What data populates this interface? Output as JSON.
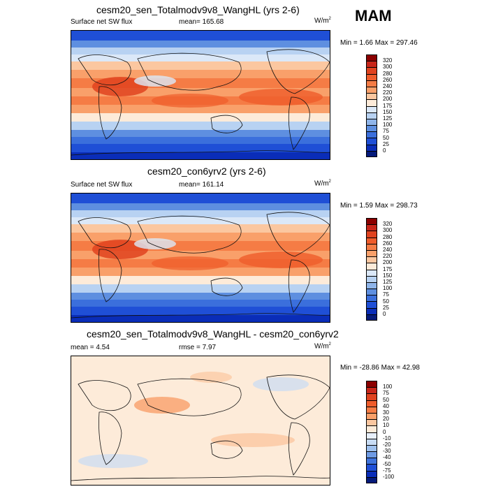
{
  "season": "MAM",
  "chart_data": [
    {
      "type": "heatmap",
      "title": "cesm20_sen_Totalmodv9v8_WangHL (yrs 2-6)",
      "variable": "Surface net SW flux",
      "stat_label": "mean=",
      "stat_value": "165.68",
      "units_base": "W/m",
      "units_exp": "2",
      "min_label": "Min =",
      "min_value": "1.66",
      "max_label": "Max =",
      "max_value": "297.46",
      "levels": [
        "320",
        "300",
        "280",
        "260",
        "240",
        "220",
        "200",
        "175",
        "150",
        "125",
        "100",
        "75",
        "50",
        "25",
        "0"
      ],
      "colors": [
        "#8b0000",
        "#c8261a",
        "#e0431f",
        "#ef5c2b",
        "#f57c45",
        "#f9a06a",
        "#fbc7a0",
        "#fdebd9",
        "#dbe8f8",
        "#b8d2f2",
        "#8fb5ea",
        "#5e8fe0",
        "#3b6fdc",
        "#1f4fd6",
        "#0a2db8",
        "#051a7a"
      ],
      "pattern": "sw"
    },
    {
      "type": "heatmap",
      "title": "cesm20_con6yrv2 (yrs 2-6)",
      "variable": "Surface net SW flux",
      "stat_label": "mean=",
      "stat_value": "161.14",
      "units_base": "W/m",
      "units_exp": "2",
      "min_label": "Min =",
      "min_value": "1.59",
      "max_label": "Max =",
      "max_value": "298.73",
      "levels": [
        "320",
        "300",
        "280",
        "260",
        "240",
        "220",
        "200",
        "175",
        "150",
        "125",
        "100",
        "75",
        "50",
        "25",
        "0"
      ],
      "colors": [
        "#8b0000",
        "#c8261a",
        "#e0431f",
        "#ef5c2b",
        "#f57c45",
        "#f9a06a",
        "#fbc7a0",
        "#fdebd9",
        "#dbe8f8",
        "#b8d2f2",
        "#8fb5ea",
        "#5e8fe0",
        "#3b6fdc",
        "#1f4fd6",
        "#0a2db8",
        "#051a7a"
      ],
      "pattern": "sw"
    },
    {
      "type": "heatmap",
      "title": "cesm20_sen_Totalmodv9v8_WangHL - cesm20_con6yrv2",
      "variable": "mean =   4.54",
      "stat_label": "rmse =",
      "stat_value": "7.97",
      "units_base": "W/m",
      "units_exp": "2",
      "min_label": "Min =",
      "min_value": "-28.86",
      "max_label": "Max =",
      "max_value": "42.98",
      "levels": [
        "100",
        "75",
        "50",
        "40",
        "30",
        "20",
        "10",
        "0",
        "-10",
        "-20",
        "-30",
        "-40",
        "-50",
        "-75",
        "-100"
      ],
      "colors": [
        "#8b0000",
        "#c8261a",
        "#e0431f",
        "#ef5c2b",
        "#f57c45",
        "#f9a06a",
        "#fbc7a0",
        "#fdebd9",
        "#e8f0fb",
        "#c8dcf4",
        "#9fc1ee",
        "#6f9be4",
        "#3f73dc",
        "#1f4fd6",
        "#0a2db8",
        "#051a7a"
      ],
      "pattern": "diff"
    }
  ]
}
